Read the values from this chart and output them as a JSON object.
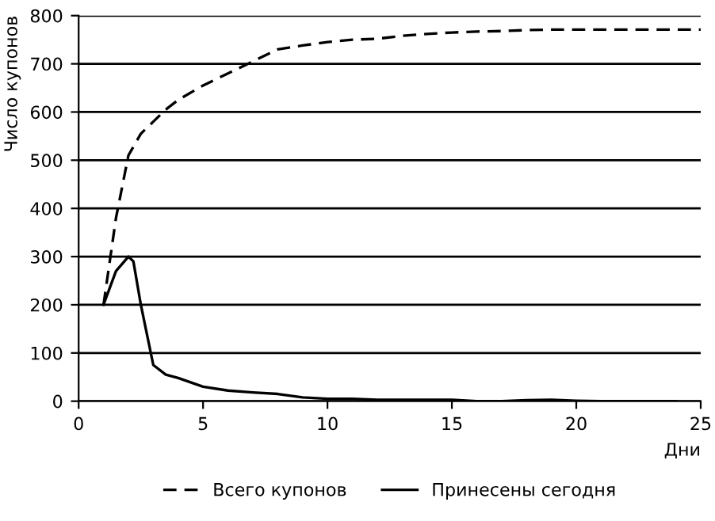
{
  "chart_data": {
    "type": "line",
    "xlabel": "Дни",
    "ylabel": "Число купонов",
    "xlim": [
      0,
      25
    ],
    "xticks": [
      0,
      5,
      10,
      15,
      20,
      25
    ],
    "ylim": [
      0,
      800
    ],
    "yticks": [
      0,
      100,
      200,
      300,
      400,
      500,
      600,
      700,
      800
    ],
    "grid": "y",
    "legend": "bottom",
    "marker": "none",
    "series": [
      {
        "name": "Всего купонов",
        "color": "#000000",
        "line_style": "dashed",
        "x": [
          1,
          1.5,
          2,
          2.5,
          3,
          3.5,
          4,
          5,
          6,
          7,
          8,
          9,
          10,
          11,
          12,
          13,
          14,
          15,
          16,
          17,
          18,
          19,
          20,
          21,
          22,
          23,
          24,
          25
        ],
        "values": [
          200,
          380,
          510,
          555,
          580,
          605,
          625,
          655,
          680,
          705,
          730,
          738,
          745,
          750,
          752,
          758,
          762,
          765,
          767,
          768,
          770,
          771,
          771,
          771,
          771,
          771,
          771,
          771
        ]
      },
      {
        "name": "Принесены сегодня",
        "color": "#000000",
        "line_style": "solid",
        "x": [
          1,
          1.5,
          2,
          2.2,
          2.5,
          2.7,
          3,
          3.5,
          4,
          5,
          6,
          7,
          8,
          9,
          10,
          11,
          12,
          13,
          14,
          15,
          16,
          17,
          18,
          19,
          20,
          21,
          22,
          23,
          24
        ],
        "values": [
          200,
          270,
          300,
          290,
          200,
          150,
          75,
          55,
          48,
          30,
          22,
          18,
          15,
          8,
          5,
          5,
          3,
          3,
          3,
          3,
          0,
          0,
          2,
          3,
          1,
          0,
          0,
          0,
          0
        ]
      }
    ]
  }
}
